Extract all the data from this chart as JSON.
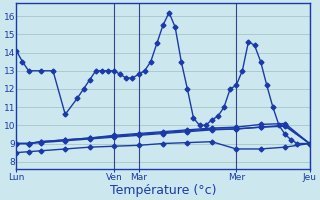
{
  "background_color": "#cce8ee",
  "grid_color": "#aacccc",
  "line_color": "#1a3aaa",
  "xlabel": "Température (°c)",
  "xlabel_fontsize": 9,
  "yticks": [
    8,
    9,
    10,
    11,
    12,
    13,
    14,
    15,
    16
  ],
  "ylim": [
    7.6,
    16.7
  ],
  "xtick_labels": [
    "Lun",
    "Ven",
    "Mar",
    "Mer",
    "Jeu"
  ],
  "xtick_positions": [
    0,
    16,
    20,
    36,
    48
  ],
  "xlim": [
    0,
    48
  ],
  "line1_x": [
    0,
    1,
    2,
    4,
    6,
    8,
    10,
    11,
    12,
    13,
    14,
    15,
    16,
    17,
    18,
    19,
    20,
    21,
    22,
    23,
    24,
    25,
    26,
    27,
    28,
    29,
    30,
    31,
    32,
    33,
    34,
    35,
    36,
    37,
    38,
    39,
    40,
    41,
    42,
    43,
    44,
    45,
    46,
    48
  ],
  "line1_y": [
    14.1,
    13.5,
    13.0,
    13.0,
    13.0,
    10.6,
    11.5,
    12.0,
    12.5,
    13.0,
    13.0,
    13.0,
    13.0,
    12.8,
    12.6,
    12.6,
    12.8,
    13.0,
    13.5,
    14.5,
    15.5,
    16.2,
    15.4,
    13.5,
    12.0,
    10.4,
    10.0,
    10.0,
    10.3,
    10.5,
    11.0,
    12.0,
    12.2,
    13.0,
    14.6,
    14.4,
    13.5,
    12.2,
    11.0,
    10.0,
    9.5,
    9.2,
    9.0,
    9.0
  ],
  "line2_x": [
    0,
    2,
    4,
    8,
    12,
    16,
    20,
    24,
    28,
    32,
    36,
    40,
    44,
    48
  ],
  "line2_y": [
    9.0,
    9.0,
    9.1,
    9.2,
    9.3,
    9.4,
    9.5,
    9.6,
    9.7,
    9.8,
    9.8,
    9.9,
    10.0,
    9.0
  ],
  "line3_x": [
    0,
    2,
    4,
    8,
    12,
    16,
    20,
    24,
    28,
    32,
    36,
    40,
    44,
    48
  ],
  "line3_y": [
    9.0,
    9.0,
    9.05,
    9.15,
    9.25,
    9.35,
    9.45,
    9.55,
    9.65,
    9.75,
    9.8,
    9.9,
    9.95,
    9.0
  ],
  "line4_x": [
    0,
    2,
    4,
    8,
    12,
    16,
    20,
    24,
    28,
    32,
    36,
    40,
    44,
    48
  ],
  "line4_y": [
    8.5,
    8.55,
    8.6,
    8.7,
    8.8,
    8.85,
    8.9,
    9.0,
    9.05,
    9.1,
    8.7,
    8.7,
    8.8,
    9.0
  ],
  "line5_x": [
    0,
    2,
    4,
    8,
    12,
    16,
    20,
    24,
    28,
    32,
    36,
    40,
    44,
    48
  ],
  "line5_y": [
    9.0,
    9.0,
    9.1,
    9.2,
    9.3,
    9.45,
    9.55,
    9.65,
    9.75,
    9.85,
    9.9,
    10.05,
    10.1,
    9.0
  ],
  "day_lines": [
    16,
    20,
    36,
    48
  ]
}
